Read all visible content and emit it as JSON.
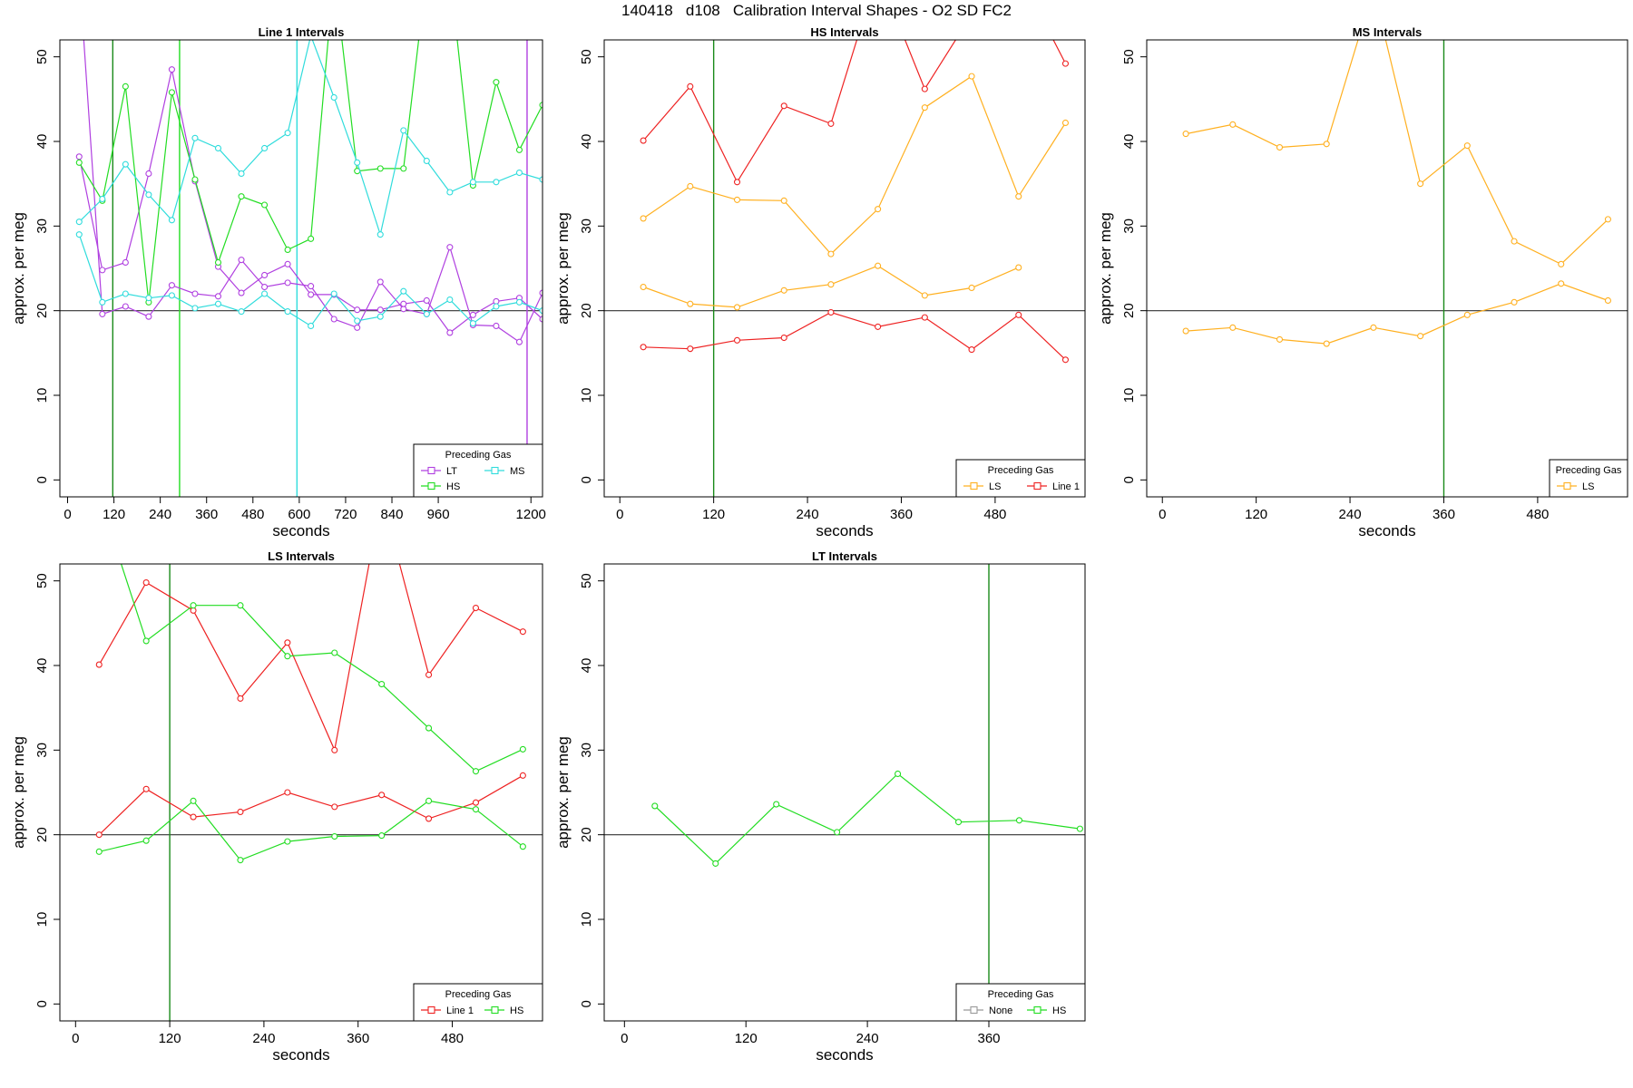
{
  "suptitle": "140418   d108   Calibration Interval Shapes - O2 SD FC2",
  "colors": {
    "LT": "#b040e0",
    "HS": "#22dd22",
    "MS": "#30dcdc",
    "LS": "#ffb020",
    "Line 1": "#ee2222",
    "None": "#999999",
    "hline": "#333333",
    "vline_dark_green": "#1a8a1a"
  },
  "chart_data": [
    {
      "type": "line",
      "title": "Line 1 Intervals",
      "xlabel": "seconds",
      "ylabel": "approx. per meg",
      "xlim": [
        -20,
        1230
      ],
      "ylim": [
        -2,
        52
      ],
      "xticks": [
        0,
        120,
        240,
        360,
        480,
        600,
        720,
        840,
        960,
        1200
      ],
      "yticks": [
        0,
        10,
        20,
        30,
        40,
        50
      ],
      "hline": 20,
      "vlines": [
        {
          "x": 117,
          "color": "#1a8a1a"
        },
        {
          "x": 290,
          "color": "#22dd22"
        },
        {
          "x": 594,
          "color": "#30dcdc"
        },
        {
          "x": 1190,
          "color": "#b040e0"
        }
      ],
      "legend": {
        "title": "Preceding Gas",
        "entries": [
          "LT",
          "MS",
          "HS"
        ]
      },
      "series": [
        {
          "name": "LT",
          "x": [
            30,
            90,
            150,
            210,
            270,
            330,
            390,
            450,
            510,
            570,
            630,
            690,
            750,
            810,
            870,
            930,
            990,
            1050,
            1110,
            1170,
            1230
          ],
          "values": [
            60,
            19.6,
            20.5,
            19.3,
            23,
            22,
            21.7,
            26,
            22.8,
            23.3,
            22.9,
            19,
            18,
            23.4,
            20.2,
            19.6,
            27.5,
            18.3,
            18.2,
            16.3,
            22.1
          ]
        },
        {
          "name": "LT",
          "x": [
            30,
            90,
            150,
            210,
            270,
            330,
            390,
            450,
            510,
            570,
            630,
            690,
            750,
            810,
            870,
            930,
            990,
            1050,
            1110,
            1170,
            1230
          ],
          "values": [
            38.2,
            24.8,
            25.7,
            36.2,
            48.5,
            35.3,
            25.2,
            22.1,
            24.2,
            25.5,
            21.9,
            21.9,
            20.1,
            20.1,
            20.8,
            21.2,
            17.4,
            19.5,
            21.1,
            21.5,
            19
          ]
        },
        {
          "name": "HS",
          "x": [
            30,
            90,
            150,
            210,
            270,
            330,
            390,
            450,
            510,
            570,
            630,
            690,
            750,
            810,
            870,
            930,
            990,
            1050,
            1110,
            1170,
            1230
          ],
          "values": [
            37.5,
            33,
            46.5,
            21,
            45.8,
            35.5,
            25.7,
            33.5,
            32.5,
            27.2,
            28.5,
            60,
            36.5,
            36.8,
            36.8,
            60,
            60,
            34.8,
            47,
            39,
            44.3
          ]
        },
        {
          "name": "MS",
          "x": [
            30,
            90,
            150,
            210,
            270,
            330,
            390,
            450,
            510,
            570,
            630,
            690,
            750,
            810,
            870,
            930,
            990,
            1050,
            1110,
            1170,
            1230
          ],
          "values": [
            30.5,
            33.2,
            37.3,
            33.7,
            30.7,
            40.4,
            39.2,
            36.2,
            39.2,
            41,
            52.5,
            45.2,
            37.5,
            29,
            41.3,
            37.7,
            34,
            35.2,
            35.2,
            36.3,
            35.5
          ]
        },
        {
          "name": "MS",
          "x": [
            30,
            90,
            150,
            210,
            270,
            330,
            390,
            450,
            510,
            570,
            630,
            690,
            750,
            810,
            870,
            930,
            990,
            1050,
            1110,
            1170,
            1230
          ],
          "values": [
            29,
            21,
            22,
            21.5,
            21.8,
            20.3,
            20.8,
            19.9,
            22,
            19.9,
            18.2,
            22,
            18.8,
            19.3,
            22.3,
            19.6,
            21.3,
            18.5,
            20.5,
            21,
            20
          ]
        }
      ]
    },
    {
      "type": "line",
      "title": "HS Intervals",
      "xlabel": "seconds",
      "ylabel": "approx. per meg",
      "xlim": [
        -20,
        595
      ],
      "ylim": [
        -2,
        52
      ],
      "xticks": [
        0,
        120,
        240,
        360,
        480
      ],
      "yticks": [
        0,
        10,
        20,
        30,
        40,
        50
      ],
      "hline": 20,
      "vlines": [
        {
          "x": 120,
          "color": "#1a8a1a"
        }
      ],
      "legend": {
        "title": "Preceding Gas",
        "entries": [
          "LS",
          "Line 1"
        ]
      },
      "series": [
        {
          "name": "Line 1",
          "x": [
            30,
            90,
            150,
            210,
            270,
            330,
            390,
            450,
            510,
            570
          ],
          "values": [
            40.1,
            46.5,
            35.2,
            44.2,
            42.1,
            60,
            46.2,
            55,
            60,
            49.2
          ]
        },
        {
          "name": "LS",
          "x": [
            30,
            90,
            150,
            210,
            270,
            330,
            390,
            450,
            510,
            570
          ],
          "values": [
            30.9,
            34.7,
            33.1,
            33,
            26.7,
            32,
            44,
            47.7,
            33.5,
            42.2
          ]
        },
        {
          "name": "LS",
          "x": [
            30,
            90,
            150,
            210,
            270,
            330,
            390,
            450,
            510
          ],
          "values": [
            22.8,
            20.8,
            20.4,
            22.4,
            23.1,
            25.3,
            21.8,
            22.7,
            25.1
          ]
        },
        {
          "name": "Line 1",
          "x": [
            30,
            90,
            150,
            210,
            270,
            330,
            390,
            450,
            510,
            570
          ],
          "values": [
            15.7,
            15.5,
            16.5,
            16.8,
            19.8,
            18.1,
            19.2,
            15.4,
            19.5,
            14.2
          ]
        }
      ]
    },
    {
      "type": "line",
      "title": "MS Intervals",
      "xlabel": "seconds",
      "ylabel": "approx. per meg",
      "xlim": [
        -20,
        595
      ],
      "ylim": [
        -2,
        52
      ],
      "xticks": [
        0,
        120,
        240,
        360,
        480
      ],
      "yticks": [
        0,
        10,
        20,
        30,
        40,
        50
      ],
      "hline": 20,
      "vlines": [
        {
          "x": 360,
          "color": "#1a8a1a"
        }
      ],
      "legend": {
        "title": "Preceding Gas",
        "entries": [
          "LS"
        ]
      },
      "series": [
        {
          "name": "LS",
          "x": [
            30,
            90,
            150,
            210,
            270,
            330,
            390,
            450,
            510,
            570
          ],
          "values": [
            40.9,
            42,
            39.3,
            39.7,
            58,
            35,
            39.5,
            28.2,
            25.5,
            30.8
          ]
        },
        {
          "name": "LS",
          "x": [
            30,
            90,
            150,
            210,
            270,
            330,
            390,
            450,
            510,
            570
          ],
          "values": [
            17.6,
            18,
            16.6,
            16.1,
            18,
            17,
            19.5,
            21,
            23.2,
            21.2
          ]
        }
      ]
    },
    {
      "type": "line",
      "title": "LS Intervals",
      "xlabel": "seconds",
      "ylabel": "approx. per meg",
      "xlim": [
        -20,
        595
      ],
      "ylim": [
        -2,
        52
      ],
      "xticks": [
        0,
        120,
        240,
        360,
        480
      ],
      "yticks": [
        0,
        10,
        20,
        30,
        40,
        50
      ],
      "hline": 20,
      "vlines": [
        {
          "x": 120,
          "color": "#1a8a1a"
        }
      ],
      "legend": {
        "title": "Preceding Gas",
        "entries": [
          "Line 1",
          "HS"
        ]
      },
      "series": [
        {
          "name": "Line 1",
          "x": [
            30,
            90,
            150,
            210,
            270,
            330,
            390,
            450,
            510,
            570
          ],
          "values": [
            40.1,
            49.8,
            46.5,
            36.1,
            42.7,
            30,
            60,
            38.9,
            46.8,
            44
          ]
        },
        {
          "name": "HS",
          "x": [
            30,
            90,
            150,
            210,
            270,
            330,
            390,
            450,
            510,
            570
          ],
          "values": [
            60,
            42.9,
            47.1,
            47.1,
            41.1,
            41.5,
            37.8,
            32.6,
            27.5,
            30.1
          ]
        },
        {
          "name": "Line 1",
          "x": [
            30,
            90,
            150,
            210,
            270,
            330,
            390,
            450,
            510,
            570
          ],
          "values": [
            20,
            25.4,
            22.1,
            22.7,
            25,
            23.3,
            24.7,
            21.9,
            23.8,
            27
          ]
        },
        {
          "name": "HS",
          "x": [
            30,
            90,
            150,
            210,
            270,
            330,
            390,
            450,
            510,
            570
          ],
          "values": [
            18,
            19.3,
            24,
            17,
            19.2,
            19.8,
            19.9,
            24,
            23,
            18.6
          ]
        }
      ]
    },
    {
      "type": "line",
      "title": "LT Intervals",
      "xlabel": "seconds",
      "ylabel": "approx. per meg",
      "xlim": [
        -20,
        455
      ],
      "ylim": [
        -2,
        52
      ],
      "xticks": [
        0,
        120,
        240,
        360
      ],
      "yticks": [
        0,
        10,
        20,
        30,
        40,
        50
      ],
      "hline": 20,
      "vlines": [
        {
          "x": 360,
          "color": "#1a8a1a"
        }
      ],
      "legend": {
        "title": "Preceding Gas",
        "entries": [
          "None",
          "HS"
        ]
      },
      "series": [
        {
          "name": "HS",
          "x": [
            30,
            90,
            150,
            210,
            270,
            330,
            390,
            450
          ],
          "values": [
            23.4,
            16.6,
            23.6,
            20.3,
            27.2,
            21.5,
            21.7,
            20.7
          ]
        }
      ]
    }
  ]
}
